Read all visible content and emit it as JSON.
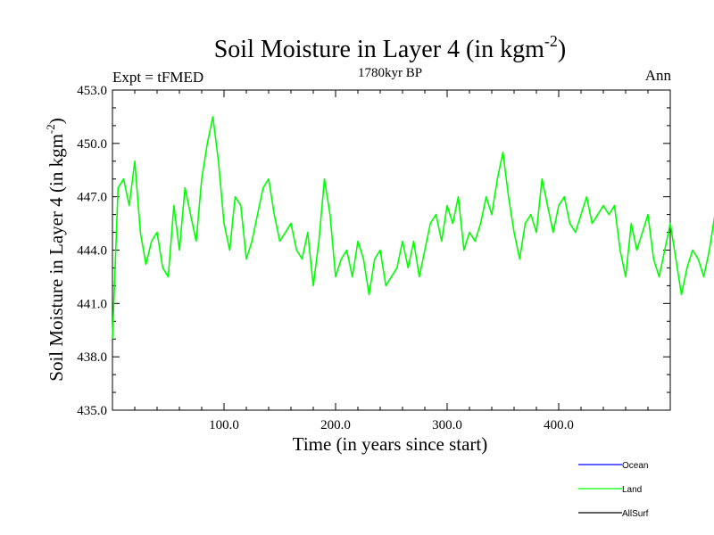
{
  "chart_data": {
    "type": "line",
    "title_main": "Soil Moisture in Layer 4 (in kgm",
    "title_sup": "-2",
    "title_close": ")",
    "subtitle_left": "Expt = tFMED",
    "subtitle_center": "1780kyr BP",
    "subtitle_right": "Ann",
    "xlabel": "Time (in years since start)",
    "ylabel_main": "Soil Moisture in Layer 4 (in kgm",
    "ylabel_sup": "-2",
    "ylabel_close": ")",
    "xlim": [
      0,
      500
    ],
    "ylim": [
      435,
      453
    ],
    "xticks": [
      100,
      200,
      300,
      400
    ],
    "xtick_labels": [
      "100.0",
      "200.0",
      "300.0",
      "400.0"
    ],
    "yticks": [
      435,
      438,
      441,
      444,
      447,
      450,
      453
    ],
    "ytick_labels": [
      "435.0",
      "438.0",
      "441.0",
      "444.0",
      "447.0",
      "450.0",
      "453.0"
    ],
    "legend": [
      {
        "name": "Ocean",
        "color": "#0000ff"
      },
      {
        "name": "Land",
        "color": "#00ff00"
      },
      {
        "name": "AllSurf",
        "color": "#000000"
      }
    ],
    "series": [
      {
        "name": "Land",
        "color": "#00ff00",
        "x_start": 0,
        "x_step": 5,
        "values": [
          439.0,
          447.5,
          448.0,
          446.5,
          449.0,
          445.0,
          443.2,
          444.5,
          445.0,
          443.0,
          442.5,
          446.5,
          444.0,
          447.5,
          446.0,
          444.5,
          448.0,
          450.0,
          451.5,
          449.0,
          445.5,
          444.0,
          447.0,
          446.5,
          443.5,
          444.5,
          446.0,
          447.5,
          448.0,
          446.0,
          444.5,
          445.0,
          445.5,
          444.0,
          443.5,
          445.0,
          442.0,
          444.5,
          448.0,
          446.0,
          442.5,
          443.5,
          444.0,
          442.5,
          444.5,
          443.5,
          441.5,
          443.5,
          444.0,
          442.0,
          442.5,
          443.0,
          444.5,
          443.0,
          444.5,
          442.5,
          444.0,
          445.5,
          446.0,
          444.5,
          446.5,
          445.5,
          447.0,
          444.0,
          445.0,
          444.5,
          445.5,
          447.0,
          446.0,
          448.0,
          449.5,
          447.0,
          445.0,
          443.5,
          445.5,
          446.0,
          445.0,
          448.0,
          446.5,
          445.0,
          446.5,
          447.0,
          445.5,
          445.0,
          446.0,
          447.0,
          445.5,
          446.0,
          446.5,
          446.0,
          446.5,
          444.0,
          442.5,
          445.5,
          444.0,
          445.0,
          446.0,
          443.5,
          442.5,
          444.0,
          445.5,
          443.5,
          441.5,
          443.0,
          444.0,
          443.5,
          442.5,
          444.0,
          446.0,
          443.5,
          442.5,
          443.0,
          441.5,
          443.5,
          444.0,
          442.5,
          444.5,
          443.0,
          442.5,
          444.5,
          441.5,
          441.0,
          443.0,
          442.5,
          441.0,
          443.5,
          444.0,
          442.5,
          441.5,
          442.0,
          441.0,
          443.5,
          442.0,
          444.0,
          442.5,
          441.0,
          442.0,
          440.5,
          439.5,
          440.5,
          441.5,
          442.5,
          440.0,
          439.0,
          438.0,
          439.5,
          441.5,
          443.0,
          441.0,
          441.5,
          443.0,
          442.5,
          442.0,
          444.5,
          443.5,
          442.0,
          444.0,
          443.5,
          443.0,
          442.5,
          441.5,
          443.0,
          443.0,
          444.5,
          443.5,
          443.0,
          442.0,
          444.0,
          441.0,
          443.0,
          445.0,
          444.0,
          445.5,
          441.0,
          443.5,
          444.0,
          442.5,
          441.5,
          440.0,
          439.0,
          440.5,
          439.5,
          443.0
        ]
      }
    ]
  }
}
